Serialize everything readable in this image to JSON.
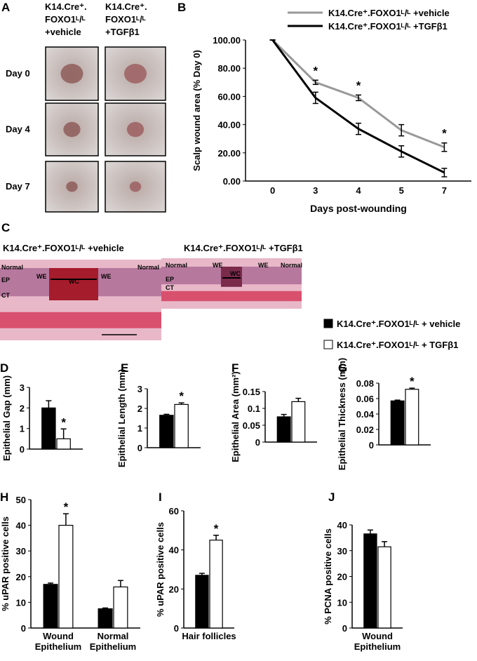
{
  "panel_a": {
    "label": "A",
    "columns": [
      [
        "K14.Cre⁺.",
        "FOXO1ᴸ/ᴸ",
        "+vehicle"
      ],
      [
        "K14.Cre⁺.",
        "FOXO1ᴸ/ᴸ",
        "+TGFβ1"
      ]
    ],
    "rows": [
      "Day 0",
      "Day 4",
      "Day 7"
    ]
  },
  "panel_c": {
    "label": "C",
    "sections": [
      {
        "title": "K14.Cre⁺.FOXO1ᴸ/ᴸ +vehicle",
        "labels": [
          "Normal",
          "EP",
          "CT",
          "WE",
          "WC",
          "WE",
          "Normal"
        ]
      },
      {
        "title": "K14.Cre⁺.FOXO1ᴸ/ᴸ +TGFβ1",
        "labels": [
          "Normal",
          "EP",
          "CT",
          "WE",
          "WC",
          "WE",
          "Normal"
        ]
      }
    ]
  },
  "legend": {
    "items": [
      {
        "name": "K14.Cre⁺.FOXO1ᴸ/ᴸ + vehicle",
        "color": "#000000"
      },
      {
        "name": "K14.Cre⁺.FOXO1ᴸ/ᴸ + TGFβ1",
        "color": "#ffffff"
      }
    ]
  },
  "chart_data": [
    {
      "type": "line",
      "panel": "B",
      "ylabel": "Scalp wound area (% Day 0)",
      "xlabel": "Days post-wounding",
      "categories": [
        "0",
        "3",
        "4",
        "5",
        "7"
      ],
      "series": [
        {
          "name": "K14.Cre⁺.FOXO1ᴸ/ᴸ +vehicle",
          "color": "#999999",
          "values": [
            100,
            70,
            59,
            36,
            24
          ],
          "errors": [
            0,
            1.5,
            2,
            4,
            3
          ],
          "annotations": [
            null,
            "*",
            "*",
            null,
            "*"
          ]
        },
        {
          "name": "K14.Cre⁺.FOXO1ᴸ/ᴸ +TGFβ1",
          "color": "#000000",
          "values": [
            100,
            59,
            37,
            21,
            6
          ],
          "errors": [
            0,
            4,
            4,
            4,
            3
          ],
          "annotations": [
            null,
            null,
            null,
            null,
            null
          ]
        }
      ],
      "ylim": [
        0,
        100
      ],
      "yticks": [
        {
          "value": 0,
          "label": "0.00"
        },
        {
          "value": 20,
          "label": "20.00"
        },
        {
          "value": 40,
          "label": "40.00"
        },
        {
          "value": 60,
          "label": "60.00"
        },
        {
          "value": 80,
          "label": "80.00"
        },
        {
          "value": 100,
          "label": "100.00"
        }
      ]
    },
    {
      "type": "bar",
      "panel": "D",
      "ylabel": "Epithelial Gap (mm)",
      "categories": [
        null
      ],
      "series": [
        {
          "color": "#000000",
          "values": [
            2.0
          ],
          "errors": [
            0.35
          ],
          "annotations": [
            null
          ]
        },
        {
          "color": "#ffffff",
          "values": [
            0.5
          ],
          "errors": [
            0.48
          ],
          "annotations": [
            "*"
          ]
        }
      ],
      "ylim": [
        0,
        3
      ],
      "yticks": [
        0,
        1,
        2,
        3
      ]
    },
    {
      "type": "bar",
      "panel": "E",
      "ylabel": "Epithelial Length (mm)",
      "categories": [
        null
      ],
      "series": [
        {
          "color": "#000000",
          "values": [
            1.65
          ],
          "errors": [
            0.05
          ],
          "annotations": [
            null
          ]
        },
        {
          "color": "#ffffff",
          "values": [
            2.2
          ],
          "errors": [
            0.08
          ],
          "annotations": [
            "*"
          ]
        }
      ],
      "ylim": [
        0,
        3
      ],
      "yticks": [
        0,
        1,
        2,
        3
      ]
    },
    {
      "type": "bar",
      "panel": "F",
      "ylabel": "Epithelial Area (mm²)",
      "categories": [
        null
      ],
      "series": [
        {
          "color": "#000000",
          "values": [
            0.075
          ],
          "errors": [
            0.007
          ],
          "annotations": [
            null
          ]
        },
        {
          "color": "#ffffff",
          "values": [
            0.12
          ],
          "errors": [
            0.01
          ],
          "annotations": [
            null
          ]
        }
      ],
      "ylim": [
        0,
        0.15
      ],
      "yticks": [
        0,
        0.05,
        0.1,
        0.15
      ]
    },
    {
      "type": "bar",
      "panel": "G",
      "ylabel": "Epithelial Thickness (mm)",
      "categories": [
        null
      ],
      "series": [
        {
          "color": "#000000",
          "values": [
            0.057
          ],
          "errors": [
            0.001
          ],
          "annotations": [
            null
          ]
        },
        {
          "color": "#ffffff",
          "values": [
            0.072
          ],
          "errors": [
            0.0015
          ],
          "annotations": [
            "*"
          ]
        }
      ],
      "ylim": [
        0,
        0.08
      ],
      "yticks": [
        0,
        0.02,
        0.04,
        0.06,
        0.08
      ]
    },
    {
      "type": "bar",
      "panel": "H",
      "ylabel": "% uPAR positive cells",
      "categories": [
        [
          "Wound",
          "Epithelium"
        ],
        [
          "Normal",
          "Epithelium"
        ]
      ],
      "series": [
        {
          "color": "#000000",
          "values": [
            17,
            7.5
          ],
          "errors": [
            0.5,
            0.3
          ],
          "annotations": [
            null,
            null
          ]
        },
        {
          "color": "#ffffff",
          "values": [
            40,
            16
          ],
          "errors": [
            4.5,
            2.5
          ],
          "annotations": [
            "*",
            null
          ]
        }
      ],
      "ylim": [
        0,
        50
      ],
      "yticks": [
        0,
        10,
        20,
        30,
        40,
        50
      ]
    },
    {
      "type": "bar",
      "panel": "I",
      "ylabel": "% uPAR positive cells",
      "categories": [
        [
          "Hair follicles"
        ]
      ],
      "series": [
        {
          "color": "#000000",
          "values": [
            27
          ],
          "errors": [
            1
          ],
          "annotations": [
            null
          ]
        },
        {
          "color": "#ffffff",
          "values": [
            45
          ],
          "errors": [
            2.5
          ],
          "annotations": [
            "*"
          ]
        }
      ],
      "ylim": [
        0,
        60
      ],
      "yticks": [
        0,
        20,
        40,
        60
      ]
    },
    {
      "type": "bar",
      "panel": "J",
      "ylabel": "% PCNA positive cells",
      "categories": [
        [
          "Wound",
          "Epithelium"
        ]
      ],
      "series": [
        {
          "color": "#000000",
          "values": [
            36.5
          ],
          "errors": [
            1.5
          ],
          "annotations": [
            null
          ]
        },
        {
          "color": "#ffffff",
          "values": [
            31.5
          ],
          "errors": [
            2
          ],
          "annotations": [
            null
          ]
        }
      ],
      "ylim": [
        0,
        40
      ],
      "yticks": [
        0,
        10,
        20,
        30,
        40
      ]
    }
  ]
}
